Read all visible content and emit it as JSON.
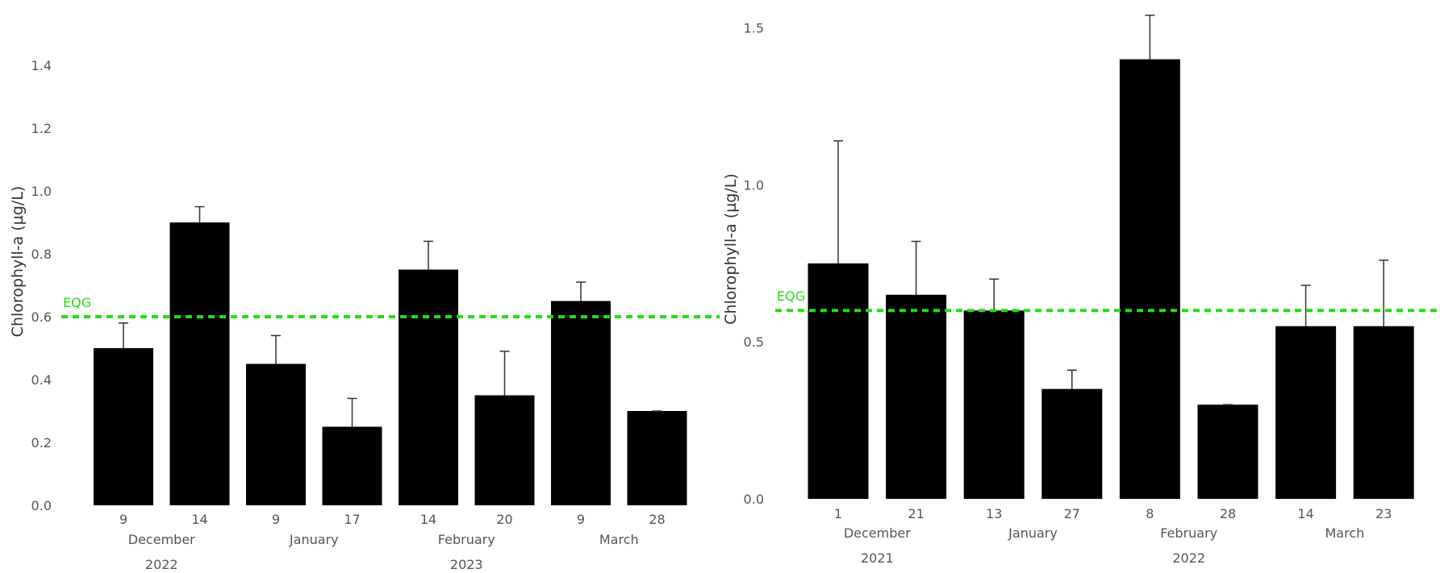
{
  "chart_data": [
    {
      "type": "bar",
      "ylabel": "Chlorophyll-a (µg/L)",
      "ylim": [
        0,
        1.5
      ],
      "yticks": [
        "0.0",
        "0.2",
        "0.4",
        "0.6",
        "0.8",
        "1.0",
        "1.2",
        "1.4"
      ],
      "yticks_values": [
        0,
        0.2,
        0.4,
        0.6,
        0.8,
        1.0,
        1.2,
        1.4
      ],
      "categories": [
        "9",
        "14",
        "9",
        "17",
        "14",
        "20",
        "9",
        "28"
      ],
      "months": [
        {
          "label": "December",
          "span": [
            0,
            1
          ]
        },
        {
          "label": "January",
          "span": [
            2,
            3
          ]
        },
        {
          "label": "February",
          "span": [
            4,
            5
          ]
        },
        {
          "label": "March",
          "span": [
            6,
            7
          ]
        }
      ],
      "years": [
        {
          "label": "2022",
          "span": [
            0,
            1
          ]
        },
        {
          "label": "2023",
          "span": [
            2,
            7
          ]
        }
      ],
      "values": [
        0.5,
        0.9,
        0.45,
        0.25,
        0.75,
        0.35,
        0.65,
        0.3
      ],
      "error_upper": [
        0.58,
        0.95,
        0.54,
        0.34,
        0.84,
        0.49,
        0.71,
        0.3
      ],
      "reference": {
        "label": "EQG",
        "value": 0.6,
        "color": "#22dd11"
      },
      "bar_color": "#000000",
      "grid": false
    },
    {
      "type": "bar",
      "ylabel": "Chlorophyll-a (µg/L)",
      "ylim": [
        0,
        1.54
      ],
      "yticks": [
        "0.0",
        "0.5",
        "1.0",
        "1.5"
      ],
      "yticks_values": [
        0,
        0.5,
        1.0,
        1.5
      ],
      "categories": [
        "1",
        "21",
        "13",
        "27",
        "8",
        "28",
        "14",
        "23"
      ],
      "months": [
        {
          "label": "December",
          "span": [
            0,
            1
          ]
        },
        {
          "label": "January",
          "span": [
            2,
            3
          ]
        },
        {
          "label": "February",
          "span": [
            4,
            5
          ]
        },
        {
          "label": "March",
          "span": [
            6,
            7
          ]
        }
      ],
      "years": [
        {
          "label": "2021",
          "span": [
            0,
            1
          ]
        },
        {
          "label": "2022",
          "span": [
            2,
            7
          ]
        }
      ],
      "values": [
        0.75,
        0.65,
        0.6,
        0.35,
        1.4,
        0.3,
        0.55,
        0.55
      ],
      "error_upper": [
        1.14,
        0.82,
        0.7,
        0.41,
        1.54,
        0.3,
        0.68,
        0.76
      ],
      "reference": {
        "label": "EQG",
        "value": 0.6,
        "color": "#22dd11"
      },
      "bar_color": "#000000",
      "grid": false
    }
  ]
}
